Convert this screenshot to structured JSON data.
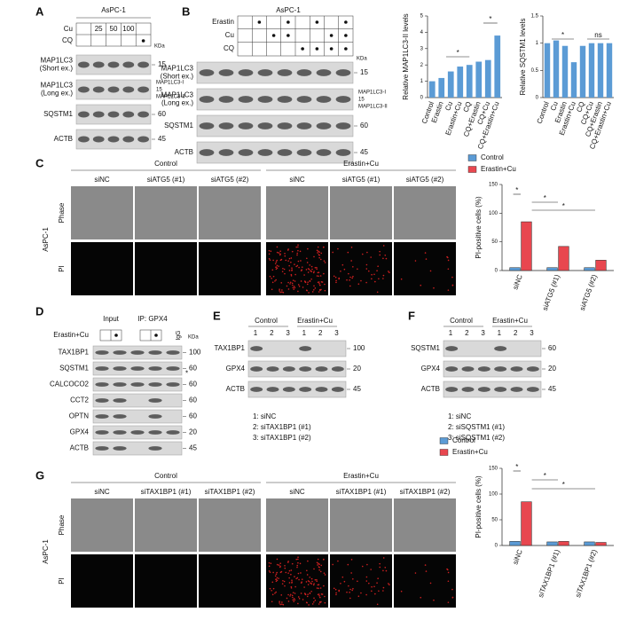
{
  "panel_a": {
    "letter": "A",
    "cell_line": "AsPC-1",
    "treatments": [
      "Cu",
      "CQ"
    ],
    "doses": [
      "25",
      "50",
      "100"
    ],
    "unit": "KDa",
    "blots": [
      {
        "label": [
          "MAP1LC3",
          "(Short ex.)"
        ],
        "marker": "15"
      },
      {
        "label": [
          "MAP1LC3",
          "(Long ex.)"
        ],
        "bands": [
          "MAP1LC3-I",
          "15",
          "MAP1LC3-II"
        ]
      },
      {
        "label": [
          "SQSTM1"
        ],
        "marker": "60"
      },
      {
        "label": [
          "ACTB"
        ],
        "marker": "45"
      }
    ]
  },
  "panel_b": {
    "letter": "B",
    "cell_line": "AsPC-1",
    "treatments": [
      "Erastin",
      "Cu",
      "CQ"
    ],
    "unit": "KDa",
    "blots": [
      {
        "label": [
          "MAP1LC3",
          "(Short ex.)"
        ],
        "marker": "15"
      },
      {
        "label": [
          "MAP1LC3",
          "(Long ex.)"
        ],
        "bands": [
          "MAP1LC3-I",
          "15",
          "MAP1LC3-II"
        ]
      },
      {
        "label": [
          "SQSTM1"
        ],
        "marker": "60"
      },
      {
        "label": [
          "ACTB"
        ],
        "marker": "45"
      }
    ]
  },
  "panel_c": {
    "letter": "C",
    "cell_line": "AsPC-1",
    "groups": [
      "Control",
      "Erastin+Cu"
    ],
    "columns": [
      "siNC",
      "siATG5 (#1)",
      "siATG5 (#2)"
    ],
    "rows": [
      "Phase",
      "PI"
    ]
  },
  "panel_d": {
    "letter": "D",
    "headers": [
      "Input",
      "IP: GPX4"
    ],
    "treatment": "Erastin+Cu",
    "igg": "IgG",
    "unit": "KDa",
    "blots": [
      {
        "label": [
          "TAX1BP1"
        ],
        "marker": "100"
      },
      {
        "label": [
          "SQSTM1"
        ],
        "marker": "60",
        "note": "*"
      },
      {
        "label": [
          "CALCOCO2"
        ],
        "marker": "60"
      },
      {
        "label": [
          "CCT2"
        ],
        "marker": "60"
      },
      {
        "label": [
          "OPTN"
        ],
        "marker": "60"
      },
      {
        "label": [
          "GPX4"
        ],
        "marker": "20"
      },
      {
        "label": [
          "ACTB"
        ],
        "marker": "45"
      }
    ]
  },
  "panel_e": {
    "letter": "E",
    "groups": [
      "Control",
      "Erastin+Cu"
    ],
    "lanes": [
      "1",
      "2",
      "3",
      "1",
      "2",
      "3"
    ],
    "blots": [
      {
        "label": [
          "TAX1BP1"
        ],
        "marker": "100"
      },
      {
        "label": [
          "GPX4"
        ],
        "marker": "20"
      },
      {
        "label": [
          "ACTB"
        ],
        "marker": "45"
      }
    ],
    "legend": [
      "1: siNC",
      "2: siTAX1BP1 (#1)",
      "3: siTAX1BP1 (#2)"
    ]
  },
  "panel_f": {
    "letter": "F",
    "groups": [
      "Control",
      "Erastin+Cu"
    ],
    "lanes": [
      "1",
      "2",
      "3",
      "1",
      "2",
      "3"
    ],
    "blots": [
      {
        "label": [
          "SQSTM1"
        ],
        "marker": "60"
      },
      {
        "label": [
          "GPX4"
        ],
        "marker": "20"
      },
      {
        "label": [
          "ACTB"
        ],
        "marker": "45"
      }
    ],
    "legend": [
      "1: siNC",
      "2: siSQSTM1 (#1)",
      "3: siSQSTM1 (#2)"
    ]
  },
  "panel_g": {
    "letter": "G",
    "cell_line": "AsPC-1",
    "groups": [
      "Control",
      "Erastin+Cu"
    ],
    "columns": [
      "siNC",
      "siTAX1BP1 (#1)",
      "siTAX1BP1 (#2)"
    ],
    "rows": [
      "Phase",
      "PI"
    ]
  },
  "chart_data": [
    {
      "type": "bar",
      "ylabel": "Relative MAP1LC3-II levels",
      "categories": [
        "Control",
        "Erastin",
        "Cu",
        "Erastin+Cu",
        "CQ",
        "CQ+Erastin",
        "CQ+Cu",
        "CQ+Erastin+Cu"
      ],
      "values": [
        1.0,
        1.2,
        1.6,
        1.9,
        2.0,
        2.2,
        2.3,
        3.8
      ],
      "color": "#5b9bd5",
      "ylim": [
        0,
        5
      ],
      "yticks": [
        0,
        1,
        2,
        3,
        4,
        5
      ],
      "annotations": [
        "*",
        "*"
      ]
    },
    {
      "type": "bar",
      "ylabel": "Relative SQSTM1 levels",
      "categories": [
        "Control",
        "Cu",
        "Erastin",
        "Erastin+Cu",
        "CQ",
        "CQ+Cu",
        "CQ+Erastin",
        "CQ+Erastin+Cu"
      ],
      "values": [
        1.0,
        1.05,
        0.95,
        0.65,
        0.95,
        1.0,
        1.0,
        1.0
      ],
      "color": "#5b9bd5",
      "ylim": [
        0,
        1.5
      ],
      "yticks": [
        0,
        0.5,
        1,
        1.5
      ],
      "annotations": [
        "*",
        "ns"
      ]
    },
    {
      "type": "bar",
      "ylabel": "PI-positive cells (%)",
      "categories": [
        "siNC",
        "siATG5 (#1)",
        "siATG5 (#2)"
      ],
      "series": [
        {
          "name": "Control",
          "color": "#5b9bd5",
          "values": [
            5,
            5,
            5
          ]
        },
        {
          "name": "Erastin+Cu",
          "color": "#e8474f",
          "values": [
            85,
            42,
            18
          ]
        }
      ],
      "ylim": [
        0,
        150
      ],
      "yticks": [
        0,
        50,
        100,
        150
      ],
      "annotations": [
        "*",
        "*",
        "*"
      ]
    },
    {
      "type": "bar",
      "ylabel": "PI-positive cells (%)",
      "categories": [
        "siNC",
        "siTAX1BP1 (#1)",
        "siTAX1BP1 (#2)"
      ],
      "series": [
        {
          "name": "Control",
          "color": "#5b9bd5",
          "values": [
            8,
            7,
            7
          ]
        },
        {
          "name": "Erastin+Cu",
          "color": "#e8474f",
          "values": [
            85,
            8,
            6
          ]
        }
      ],
      "ylim": [
        0,
        150
      ],
      "yticks": [
        0,
        50,
        100,
        150
      ],
      "annotations": [
        "*",
        "*",
        "*"
      ]
    }
  ]
}
